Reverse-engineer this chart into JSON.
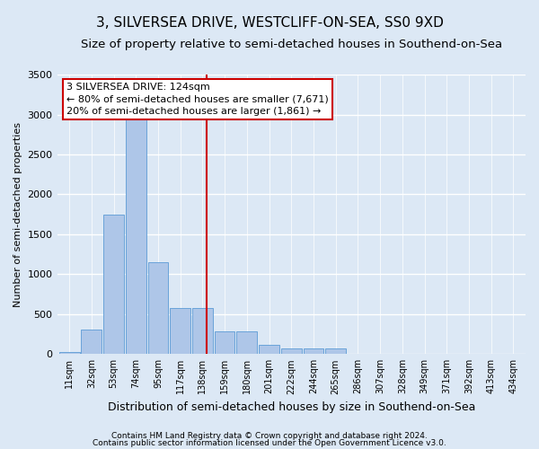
{
  "title": "3, SILVERSEA DRIVE, WESTCLIFF-ON-SEA, SS0 9XD",
  "subtitle": "Size of property relative to semi-detached houses in Southend-on-Sea",
  "xlabel": "Distribution of semi-detached houses by size in Southend-on-Sea",
  "ylabel": "Number of semi-detached properties",
  "footnote1": "Contains HM Land Registry data © Crown copyright and database right 2024.",
  "footnote2": "Contains public sector information licensed under the Open Government Licence v3.0.",
  "bar_labels": [
    "11sqm",
    "32sqm",
    "53sqm",
    "74sqm",
    "95sqm",
    "117sqm",
    "138sqm",
    "159sqm",
    "180sqm",
    "201sqm",
    "222sqm",
    "244sqm",
    "265sqm",
    "286sqm",
    "307sqm",
    "328sqm",
    "349sqm",
    "371sqm",
    "392sqm",
    "413sqm",
    "434sqm"
  ],
  "bar_values": [
    25,
    310,
    1750,
    3000,
    1150,
    580,
    580,
    280,
    280,
    120,
    70,
    70,
    70,
    0,
    0,
    0,
    0,
    0,
    0,
    0,
    0
  ],
  "bar_color": "#aec6e8",
  "bar_edge_color": "#5b9bd5",
  "property_line_x": 6.2,
  "property_line_color": "#cc0000",
  "ylim": [
    0,
    3500
  ],
  "yticks": [
    0,
    500,
    1000,
    1500,
    2000,
    2500,
    3000,
    3500
  ],
  "annotation_text": "3 SILVERSEA DRIVE: 124sqm\n← 80% of semi-detached houses are smaller (7,671)\n20% of semi-detached houses are larger (1,861) →",
  "annotation_box_color": "#ffffff",
  "annotation_box_edge": "#cc0000",
  "background_color": "#dce8f5",
  "plot_background": "#dce8f5",
  "grid_color": "#ffffff",
  "title_fontsize": 11,
  "subtitle_fontsize": 9.5,
  "ylabel_fontsize": 8,
  "xlabel_fontsize": 9,
  "footnote_fontsize": 6.5,
  "annotation_fontsize": 8
}
